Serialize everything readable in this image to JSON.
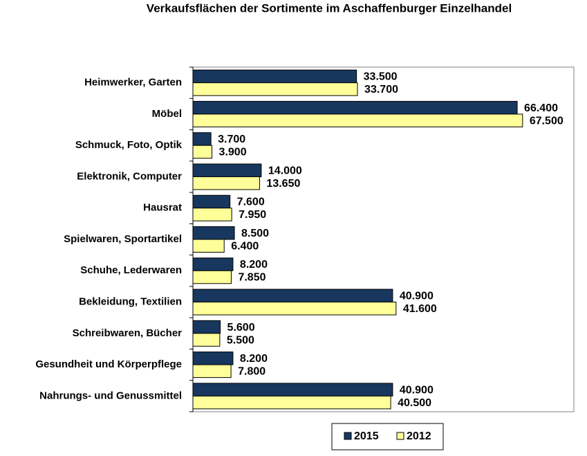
{
  "chart_data": {
    "type": "barh",
    "title": "Verkaufsflächen der Sortimente im Aschaffenburger Einzelhandel",
    "categories": [
      "Heimwerker, Garten",
      "Möbel",
      "Schmuck, Foto, Optik",
      "Elektronik, Computer",
      "Hausrat",
      "Spielwaren, Sportartikel",
      "Schuhe, Lederwaren",
      "Bekleidung, Textilien",
      "Schreibwaren, Bücher",
      "Gesundheit und Körperpflege",
      "Nahrungs- und Genussmittel"
    ],
    "series": [
      {
        "name": "2015",
        "color": "#17375e",
        "values": [
          33500,
          66400,
          3700,
          14000,
          7600,
          8500,
          8200,
          40900,
          5600,
          8200,
          40900
        ],
        "value_labels": [
          "33.500",
          "66.400",
          "3.700",
          "14.000",
          "7.600",
          "8.500",
          "8.200",
          "40.900",
          "5.600",
          "8.200",
          "40.900"
        ]
      },
      {
        "name": "2012",
        "color": "#ffff99",
        "values": [
          33700,
          67500,
          3900,
          13650,
          7950,
          6400,
          7850,
          41600,
          5500,
          7800,
          40500
        ],
        "value_labels": [
          "33.700",
          "67.500",
          "3.900",
          "13.650",
          "7.950",
          "6.400",
          "7.850",
          "41.600",
          "5.500",
          "7.800",
          "40.500"
        ]
      }
    ],
    "xlim": [
      0,
      78000
    ]
  }
}
